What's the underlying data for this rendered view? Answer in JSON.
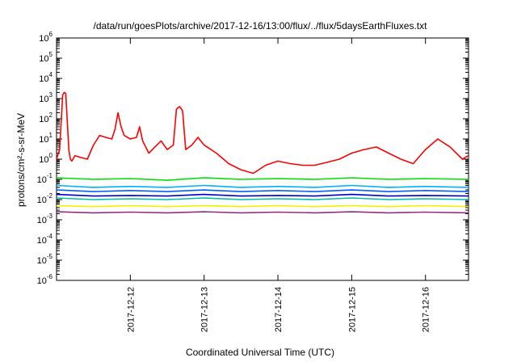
{
  "chart_data": {
    "type": "line",
    "title": "/data/run/goesPlots/archive/2017-12-16/13:00/flux/../flux/5daysEarthFluxes.txt",
    "xlabel": "Coordinated Universal Time (UTC)",
    "ylabel": "protons/cm²-s-sr-MeV",
    "y_scale": "log",
    "ylim": [
      1e-06,
      1000000.0
    ],
    "xlim": [
      "2017-12-11T00:00",
      "2017-12-16T14:00"
    ],
    "x_ticks": [
      "2017-12-12",
      "2017-12-13",
      "2017-12-14",
      "2017-12-15",
      "2017-12-16"
    ],
    "y_ticks": [
      {
        "base": "10",
        "exp": "-6"
      },
      {
        "base": "10",
        "exp": "-5"
      },
      {
        "base": "10",
        "exp": "-4"
      },
      {
        "base": "10",
        "exp": "-3"
      },
      {
        "base": "10",
        "exp": "-2"
      },
      {
        "base": "10",
        "exp": "-1"
      },
      {
        "base": "10",
        "exp": "0"
      },
      {
        "base": "10",
        "exp": "1"
      },
      {
        "base": "10",
        "exp": "2"
      },
      {
        "base": "10",
        "exp": "3"
      },
      {
        "base": "10",
        "exp": "4"
      },
      {
        "base": "10",
        "exp": "5"
      },
      {
        "base": "10",
        "exp": "6"
      }
    ],
    "grid": false,
    "series": [
      {
        "color": "#ff0000",
        "x": [
          "2017-12-11T00:00",
          "2017-12-11T01:00",
          "2017-12-11T02:00",
          "2017-12-11T02:30",
          "2017-12-11T03:00",
          "2017-12-11T04:00",
          "2017-12-11T04:30",
          "2017-12-11T05:00",
          "2017-12-11T06:00",
          "2017-12-11T08:00",
          "2017-12-11T10:00",
          "2017-12-11T12:00",
          "2017-12-11T14:00",
          "2017-12-11T16:00",
          "2017-12-11T18:00",
          "2017-12-11T19:00",
          "2017-12-11T20:00",
          "2017-12-11T21:00",
          "2017-12-11T22:00",
          "2017-12-12T00:00",
          "2017-12-12T02:00",
          "2017-12-12T03:00",
          "2017-12-12T04:00",
          "2017-12-12T06:00",
          "2017-12-12T08:00",
          "2017-12-12T10:00",
          "2017-12-12T12:00",
          "2017-12-12T14:00",
          "2017-12-12T15:00",
          "2017-12-12T16:00",
          "2017-12-12T17:00",
          "2017-12-12T18:00",
          "2017-12-12T20:00",
          "2017-12-12T22:00",
          "2017-12-13T00:00",
          "2017-12-13T04:00",
          "2017-12-13T08:00",
          "2017-12-13T12:00",
          "2017-12-13T16:00",
          "2017-12-13T20:00",
          "2017-12-14T00:00",
          "2017-12-14T04:00",
          "2017-12-14T08:00",
          "2017-12-14T12:00",
          "2017-12-14T16:00",
          "2017-12-14T20:00",
          "2017-12-15T00:00",
          "2017-12-15T04:00",
          "2017-12-15T08:00",
          "2017-12-15T12:00",
          "2017-12-15T16:00",
          "2017-12-15T20:00",
          "2017-12-16T00:00",
          "2017-12-16T04:00",
          "2017-12-16T08:00",
          "2017-12-16T12:00",
          "2017-12-16T14:00"
        ],
        "values": [
          1,
          3,
          1500,
          2000,
          1800,
          3,
          1,
          0.8,
          1.5,
          1.2,
          1,
          5,
          15,
          12,
          10,
          30,
          200,
          40,
          15,
          10,
          12,
          40,
          8,
          2,
          4,
          8,
          3,
          5,
          300,
          400,
          250,
          3,
          5,
          12,
          5,
          2,
          0.6,
          0.3,
          0.2,
          0.5,
          0.8,
          0.6,
          0.5,
          0.5,
          0.7,
          1,
          2,
          3,
          4,
          2,
          1,
          0.6,
          3,
          10,
          4,
          1,
          1.5
        ]
      },
      {
        "color": "#00e000",
        "x": [
          "2017-12-11T00:00",
          "2017-12-11T12:00",
          "2017-12-12T00:00",
          "2017-12-12T12:00",
          "2017-12-13T00:00",
          "2017-12-13T12:00",
          "2017-12-14T00:00",
          "2017-12-14T12:00",
          "2017-12-15T00:00",
          "2017-12-15T12:00",
          "2017-12-16T00:00",
          "2017-12-16T14:00"
        ],
        "values": [
          0.12,
          0.1,
          0.11,
          0.09,
          0.12,
          0.1,
          0.11,
          0.1,
          0.12,
          0.1,
          0.11,
          0.1
        ]
      },
      {
        "color": "#00b0ff",
        "x": [
          "2017-12-11T00:00",
          "2017-12-11T12:00",
          "2017-12-12T00:00",
          "2017-12-12T12:00",
          "2017-12-13T00:00",
          "2017-12-13T12:00",
          "2017-12-14T00:00",
          "2017-12-14T12:00",
          "2017-12-15T00:00",
          "2017-12-15T12:00",
          "2017-12-16T00:00",
          "2017-12-16T14:00"
        ],
        "values": [
          0.05,
          0.04,
          0.045,
          0.04,
          0.05,
          0.04,
          0.045,
          0.04,
          0.05,
          0.04,
          0.045,
          0.04
        ]
      },
      {
        "color": "#0060ff",
        "x": [
          "2017-12-11T00:00",
          "2017-12-11T12:00",
          "2017-12-12T00:00",
          "2017-12-12T12:00",
          "2017-12-13T00:00",
          "2017-12-13T12:00",
          "2017-12-14T00:00",
          "2017-12-14T12:00",
          "2017-12-15T00:00",
          "2017-12-15T12:00",
          "2017-12-16T00:00",
          "2017-12-16T14:00"
        ],
        "values": [
          0.03,
          0.025,
          0.028,
          0.025,
          0.03,
          0.025,
          0.028,
          0.025,
          0.03,
          0.025,
          0.028,
          0.025
        ]
      },
      {
        "color": "#00c0b0",
        "x": [
          "2017-12-11T00:00",
          "2017-12-11T12:00",
          "2017-12-12T00:00",
          "2017-12-12T12:00",
          "2017-12-13T00:00",
          "2017-12-13T12:00",
          "2017-12-14T00:00",
          "2017-12-14T12:00",
          "2017-12-15T00:00",
          "2017-12-15T12:00",
          "2017-12-16T00:00",
          "2017-12-16T14:00"
        ],
        "values": [
          0.012,
          0.01,
          0.011,
          0.01,
          0.012,
          0.01,
          0.011,
          0.01,
          0.012,
          0.01,
          0.011,
          0.01
        ]
      },
      {
        "color": "#0000cc",
        "x": [
          "2017-12-11T00:00",
          "2017-12-11T12:00",
          "2017-12-12T00:00",
          "2017-12-12T12:00",
          "2017-12-13T00:00",
          "2017-12-13T12:00",
          "2017-12-14T00:00",
          "2017-12-14T12:00",
          "2017-12-15T00:00",
          "2017-12-15T12:00",
          "2017-12-16T00:00",
          "2017-12-16T14:00"
        ],
        "values": [
          0.018,
          0.015,
          0.016,
          0.015,
          0.018,
          0.015,
          0.016,
          0.015,
          0.018,
          0.015,
          0.016,
          0.015
        ]
      },
      {
        "color": "#f0f000",
        "x": [
          "2017-12-11T00:00",
          "2017-12-11T12:00",
          "2017-12-12T00:00",
          "2017-12-12T12:00",
          "2017-12-13T00:00",
          "2017-12-13T12:00",
          "2017-12-14T00:00",
          "2017-12-14T12:00",
          "2017-12-15T00:00",
          "2017-12-15T12:00",
          "2017-12-16T00:00",
          "2017-12-16T14:00"
        ],
        "values": [
          0.005,
          0.0045,
          0.005,
          0.0045,
          0.005,
          0.0045,
          0.005,
          0.0045,
          0.005,
          0.0045,
          0.005,
          0.0045
        ]
      },
      {
        "color": "#903080",
        "x": [
          "2017-12-11T00:00",
          "2017-12-11T12:00",
          "2017-12-12T00:00",
          "2017-12-12T12:00",
          "2017-12-13T00:00",
          "2017-12-13T12:00",
          "2017-12-14T00:00",
          "2017-12-14T12:00",
          "2017-12-15T00:00",
          "2017-12-15T12:00",
          "2017-12-16T00:00",
          "2017-12-16T14:00"
        ],
        "values": [
          0.0025,
          0.0022,
          0.0024,
          0.0022,
          0.0025,
          0.0022,
          0.0024,
          0.0022,
          0.0025,
          0.0022,
          0.0024,
          0.0022
        ]
      }
    ]
  }
}
